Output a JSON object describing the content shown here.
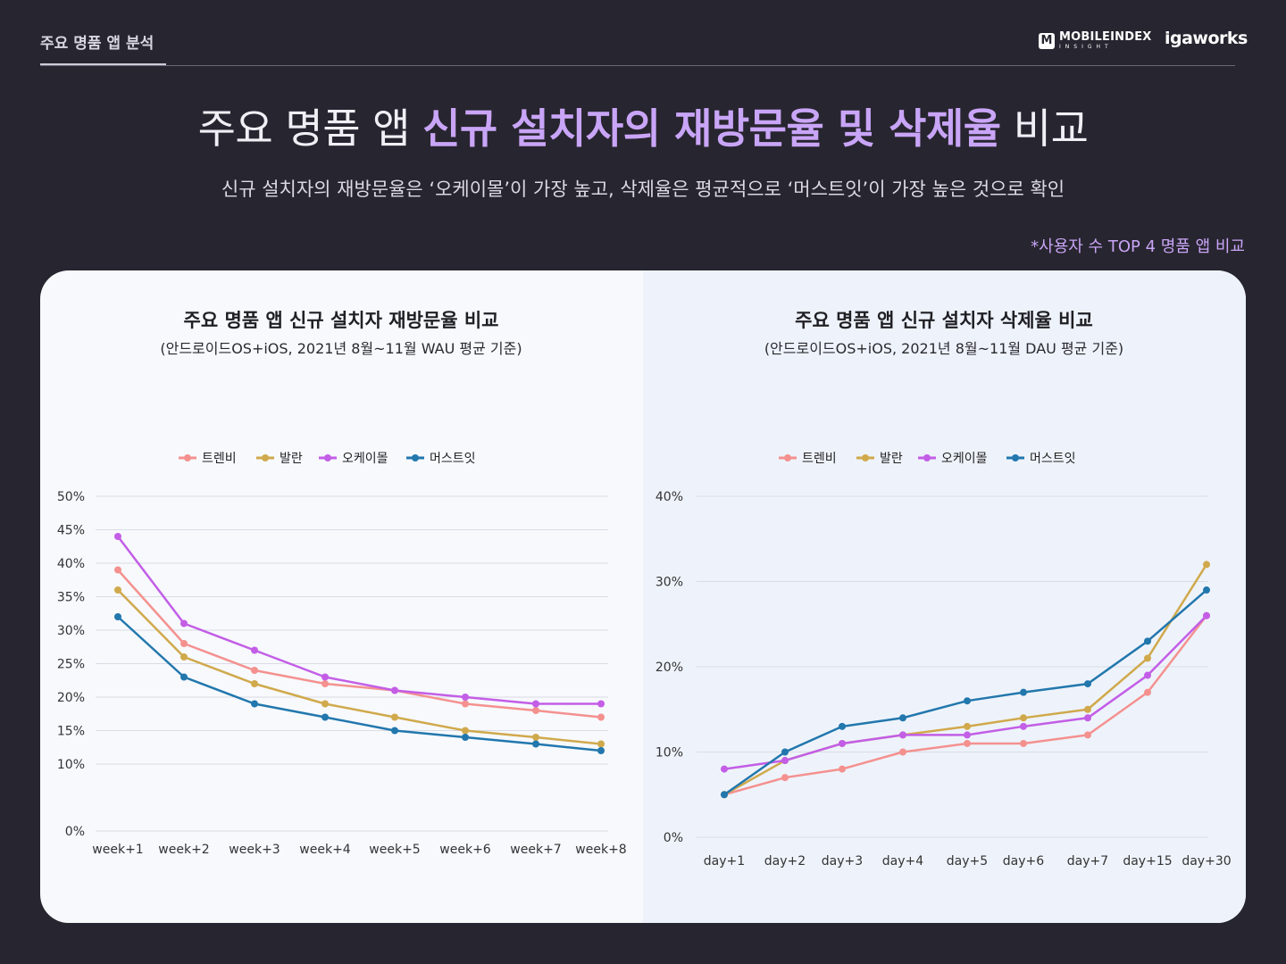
{
  "header": {
    "tab_label": "주요 명품 앱 분석",
    "logo_mobileindex": "MOBILEINDEX",
    "logo_insight": "INSIGHT",
    "logo_igaworks": "igaworks"
  },
  "title": {
    "prefix": "주요 명품 앱 ",
    "highlight": "신규 설치자의 재방문율 및 삭제율",
    "suffix": " 비교"
  },
  "subtitle": "신규 설치자의 재방문율은 ‘오케이몰’이 가장 높고, 삭제율은 평균적으로 ‘머스트잇’이 가장 높은 것으로 확인",
  "note": "*사용자 수 TOP 4 명품 앱 비교",
  "colors": {
    "trenbe": "#f4918f",
    "balaan": "#d0a94c",
    "okmall": "#c35ee6",
    "mustit": "#2277ad"
  },
  "chart_data": [
    {
      "type": "line",
      "title": "주요 명품 앱 신규 설치자 재방문율 비교",
      "subtitle": "(안드로이드OS+iOS, 2021년 8월~11월 WAU 평균 기준)",
      "categories": [
        "week+1",
        "week+2",
        "week+3",
        "week+4",
        "week+5",
        "week+6",
        "week+7",
        "week+8"
      ],
      "ylim": [
        0,
        50
      ],
      "yticks": [
        "0%",
        "10%",
        "15%",
        "20%",
        "25%",
        "30%",
        "35%",
        "40%",
        "45%",
        "50%"
      ],
      "ytick_values": [
        0,
        10,
        15,
        20,
        25,
        30,
        35,
        40,
        45,
        50
      ],
      "series": [
        {
          "name": "트렌비",
          "color_key": "trenbe",
          "values": [
            39,
            28,
            24,
            22,
            21,
            19,
            18,
            17
          ]
        },
        {
          "name": "발란",
          "color_key": "balaan",
          "values": [
            36,
            26,
            22,
            19,
            17,
            15,
            14,
            13
          ]
        },
        {
          "name": "오케이몰",
          "color_key": "okmall",
          "values": [
            44,
            31,
            27,
            23,
            21,
            20,
            19,
            19
          ]
        },
        {
          "name": "머스트잇",
          "color_key": "mustit",
          "values": [
            32,
            23,
            19,
            17,
            15,
            14,
            13,
            12
          ]
        }
      ]
    },
    {
      "type": "line",
      "title": "주요 명품 앱 신규 설치자 삭제율 비교",
      "subtitle": "(안드로이드OS+iOS, 2021년 8월~11월 DAU 평균 기준)",
      "categories": [
        "day+1",
        "day+2",
        "day+3",
        "day+4",
        "day+5",
        "day+6",
        "day+7",
        "day+15",
        "day+30"
      ],
      "ylim": [
        0,
        40
      ],
      "yticks": [
        "0%",
        "10%",
        "20%",
        "30%",
        "40%"
      ],
      "ytick_values": [
        0,
        10,
        20,
        30,
        40
      ],
      "series": [
        {
          "name": "트렌비",
          "color_key": "trenbe",
          "values": [
            5,
            7,
            8,
            10,
            11,
            11,
            12,
            17,
            26
          ]
        },
        {
          "name": "발란",
          "color_key": "balaan",
          "values": [
            5,
            9,
            11,
            12,
            13,
            14,
            15,
            21,
            32
          ]
        },
        {
          "name": "오케이몰",
          "color_key": "okmall",
          "values": [
            8,
            9,
            11,
            12,
            12,
            13,
            14,
            19,
            26
          ]
        },
        {
          "name": "머스트잇",
          "color_key": "mustit",
          "values": [
            5,
            10,
            13,
            14,
            16,
            17,
            18,
            23,
            29
          ]
        }
      ]
    }
  ]
}
